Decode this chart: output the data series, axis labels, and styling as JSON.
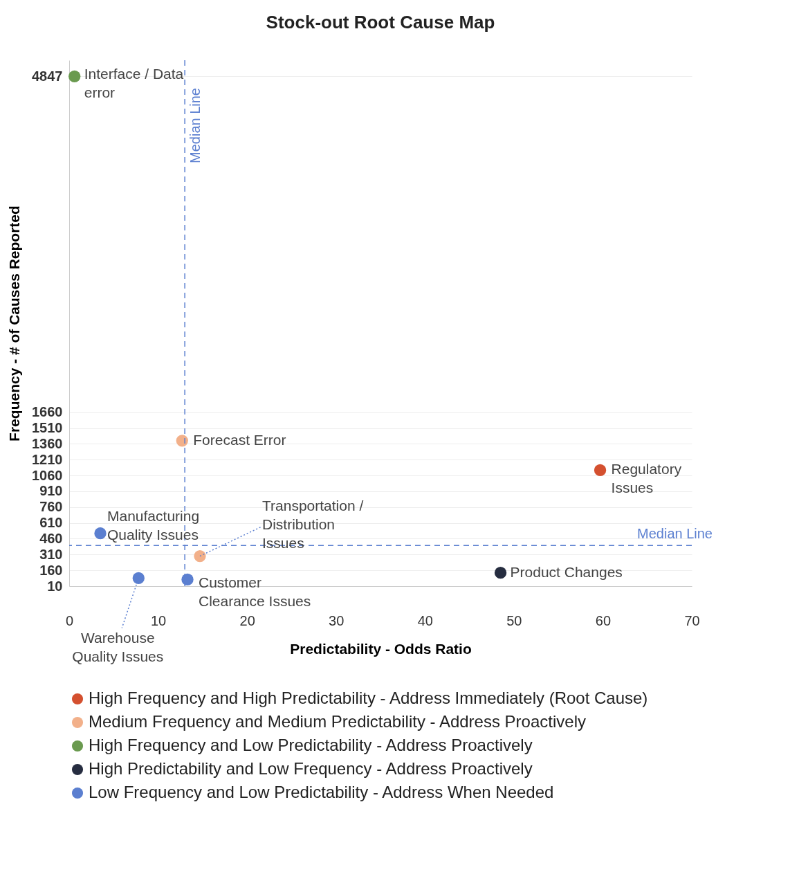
{
  "chart_data": {
    "type": "scatter",
    "title": "Stock-out Root Cause Map",
    "xlabel": "Predictability - Odds Ratio",
    "ylabel": "Frequency - # of Causes Reported",
    "xlim": [
      0,
      70
    ],
    "xticks": [
      0,
      10,
      20,
      30,
      40,
      50,
      60,
      70
    ],
    "ylim": [
      10,
      5000
    ],
    "yticks": [
      10,
      160,
      310,
      460,
      610,
      760,
      910,
      1060,
      1210,
      1360,
      1510,
      1660,
      4847
    ],
    "grid": "y",
    "legend": "bottom",
    "marker": "circle",
    "series": [
      {
        "name": "High Frequency and High Predictability - Address Immediately (Root Cause)",
        "color": "#d4502f",
        "x": [
          59.7
        ],
        "values": [
          1110
        ]
      },
      {
        "name": "Medium Frequency and  Medium Predictability - Address Proactively",
        "color": "#f2b08a",
        "x": [
          12.7,
          14.7
        ],
        "values": [
          1390,
          295
        ]
      },
      {
        "name": "High Frequency and Low Predictability - Address Proactively",
        "color": "#6a9a4f",
        "x": [
          0.6
        ],
        "values": [
          4847
        ]
      },
      {
        "name": "High Predictability and Low Frequency - Address Proactively",
        "color": "#262d40",
        "x": [
          48.5
        ],
        "values": [
          137
        ]
      },
      {
        "name": "Low Frequency and Low Predictability - Address When Needed",
        "color": "#5b7fd0",
        "x": [
          3.5,
          7.8,
          13.3
        ],
        "values": [
          511,
          86,
          73
        ]
      }
    ],
    "annotations": [
      {
        "text": "Interface / Data error",
        "x": 0.6,
        "y": 4847
      },
      {
        "text": "Forecast Error",
        "x": 12.7,
        "y": 1390
      },
      {
        "text": "Regulatory Issues",
        "x": 59.7,
        "y": 1110
      },
      {
        "text": "Manufacturing Quality Issues",
        "x": 3.5,
        "y": 511
      },
      {
        "text": "Transportation / Distribution Issues",
        "x": 14.7,
        "y": 295
      },
      {
        "text": "Product Changes",
        "x": 48.5,
        "y": 137
      },
      {
        "text": "Customer Clearance Issues",
        "x": 13.3,
        "y": 73
      },
      {
        "text": "Warehouse Quality Issues",
        "x": 7.8,
        "y": 86
      }
    ],
    "ref_lines": [
      {
        "axis": "x",
        "value": 13,
        "label": "Median Line",
        "color": "#5b7fd0",
        "line_style": "dashed"
      },
      {
        "axis": "y",
        "value": 395,
        "label": "Median Line",
        "color": "#5b7fd0",
        "line_style": "dashed"
      }
    ]
  }
}
